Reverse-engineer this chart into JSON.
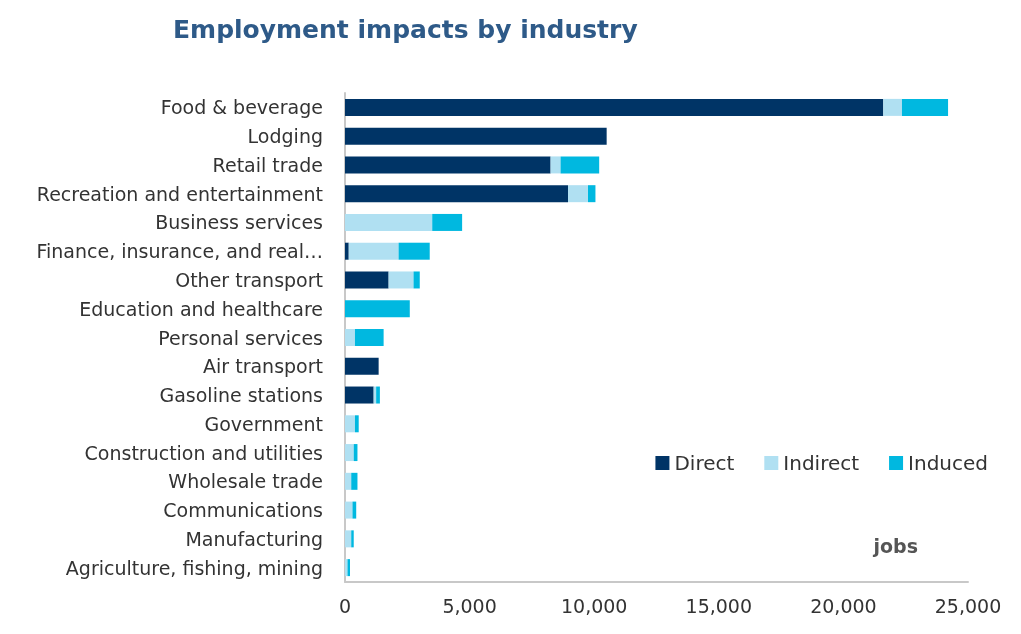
{
  "chart_data": {
    "type": "bar",
    "orientation": "horizontal",
    "stacked": true,
    "title": "Employment impacts by industry",
    "categories": [
      "Food & beverage",
      "Lodging",
      "Retail trade",
      "Recreation and entertainment",
      "Business services",
      "Finance, insurance, and real…",
      "Other transport",
      "Education and healthcare",
      "Personal services",
      "Air transport",
      "Gasoline stations",
      "Government",
      "Construction and utilities",
      "Wholesale trade",
      "Communications",
      "Manufacturing",
      "Agriculture, fishing, mining"
    ],
    "series": [
      {
        "name": "Direct",
        "color": "#003466",
        "values": [
          21600,
          10500,
          8250,
          8950,
          0,
          150,
          1750,
          0,
          0,
          1350,
          1150,
          0,
          0,
          0,
          0,
          0,
          0
        ]
      },
      {
        "name": "Indirect",
        "color": "#b0e0f2",
        "values": [
          750,
          0,
          400,
          800,
          3500,
          2000,
          1000,
          0,
          400,
          0,
          100,
          400,
          350,
          250,
          300,
          250,
          100
        ]
      },
      {
        "name": "Induced",
        "color": "#00b8e0",
        "values": [
          1850,
          0,
          1550,
          300,
          1200,
          1250,
          250,
          2600,
          1150,
          0,
          150,
          150,
          150,
          250,
          150,
          100,
          100
        ]
      }
    ],
    "xlim": [
      0,
      25000
    ],
    "xticks": [
      0,
      {
        "value": 5000,
        "label": "5,000"
      },
      {
        "value": 10000,
        "label": "10,000"
      },
      {
        "value": 15000,
        "label": "15,000"
      },
      {
        "value": 20000,
        "label": "20,000"
      },
      {
        "value": 25000,
        "label": "25,000"
      }
    ],
    "grid": false,
    "legend": "right",
    "annotations": [
      "jobs"
    ]
  }
}
